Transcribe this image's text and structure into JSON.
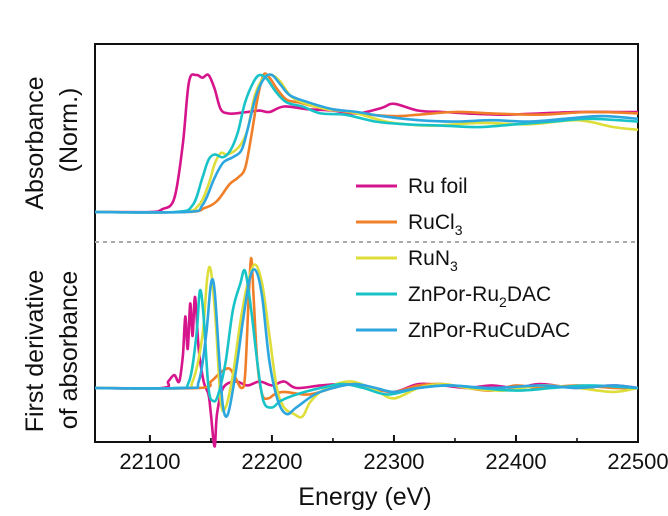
{
  "chart_data": {
    "type": "line",
    "xlabel": "Energy (eV)",
    "ylabel_top": [
      "Absorbance",
      "(Norm.)"
    ],
    "ylabel_bottom": [
      "First derivative",
      "of absorbance"
    ],
    "xlim": [
      22055,
      22500
    ],
    "xticks": [
      "22100",
      "22200",
      "22300",
      "22400",
      "22500"
    ],
    "xtick_values": [
      22100,
      22200,
      22300,
      22400,
      22500
    ],
    "grid": false,
    "legend_position": "center-right",
    "series": [
      {
        "name": "Ru foil",
        "color": "#d6148c",
        "absorbance": [
          [
            22055,
            0.0
          ],
          [
            22100,
            0.0
          ],
          [
            22110,
            0.02
          ],
          [
            22120,
            0.1
          ],
          [
            22127,
            0.5
          ],
          [
            22132,
            0.95
          ],
          [
            22138,
            1.0
          ],
          [
            22143,
            0.98
          ],
          [
            22148,
            1.0
          ],
          [
            22153,
            0.9
          ],
          [
            22158,
            0.75
          ],
          [
            22164,
            0.72
          ],
          [
            22170,
            0.72
          ],
          [
            22180,
            0.73
          ],
          [
            22190,
            0.74
          ],
          [
            22198,
            0.73
          ],
          [
            22210,
            0.77
          ],
          [
            22230,
            0.75
          ],
          [
            22250,
            0.74
          ],
          [
            22270,
            0.72
          ],
          [
            22290,
            0.76
          ],
          [
            22300,
            0.79
          ],
          [
            22320,
            0.74
          ],
          [
            22340,
            0.73
          ],
          [
            22360,
            0.72
          ],
          [
            22390,
            0.71
          ],
          [
            22420,
            0.72
          ],
          [
            22450,
            0.73
          ],
          [
            22480,
            0.73
          ],
          [
            22500,
            0.73
          ]
        ],
        "derivative": [
          [
            22055,
            0.0
          ],
          [
            22110,
            0.0
          ],
          [
            22115,
            0.05
          ],
          [
            22120,
            0.1
          ],
          [
            22124,
            0.05
          ],
          [
            22127,
            0.25
          ],
          [
            22129,
            0.55
          ],
          [
            22131,
            0.3
          ],
          [
            22133,
            0.65
          ],
          [
            22135,
            0.4
          ],
          [
            22137,
            0.7
          ],
          [
            22140,
            0.3
          ],
          [
            22144,
            0.05
          ],
          [
            22148,
            -0.05
          ],
          [
            22150,
            -0.2
          ],
          [
            22153,
            -0.45
          ],
          [
            22155,
            -0.2
          ],
          [
            22160,
            0.0
          ],
          [
            22170,
            0.05
          ],
          [
            22180,
            0.02
          ],
          [
            22190,
            0.05
          ],
          [
            22200,
            0.02
          ],
          [
            22210,
            0.05
          ],
          [
            22220,
            0.0
          ],
          [
            22240,
            0.02
          ],
          [
            22260,
            0.03
          ],
          [
            22280,
            0.0
          ],
          [
            22300,
            -0.03
          ],
          [
            22320,
            0.03
          ],
          [
            22340,
            0.02
          ],
          [
            22360,
            0.0
          ],
          [
            22380,
            0.02
          ],
          [
            22400,
            0.0
          ],
          [
            22420,
            0.03
          ],
          [
            22450,
            0.0
          ],
          [
            22480,
            0.02
          ],
          [
            22500,
            0.0
          ]
        ]
      },
      {
        "name": "RuCl3",
        "color": "#f07f2a",
        "absorbance": [
          [
            22055,
            0.0
          ],
          [
            22130,
            0.0
          ],
          [
            22145,
            0.03
          ],
          [
            22155,
            0.08
          ],
          [
            22165,
            0.2
          ],
          [
            22172,
            0.25
          ],
          [
            22178,
            0.32
          ],
          [
            22183,
            0.55
          ],
          [
            22188,
            0.82
          ],
          [
            22193,
            1.0
          ],
          [
            22198,
            0.98
          ],
          [
            22204,
            0.9
          ],
          [
            22212,
            0.82
          ],
          [
            22222,
            0.8
          ],
          [
            22235,
            0.77
          ],
          [
            22250,
            0.75
          ],
          [
            22270,
            0.72
          ],
          [
            22300,
            0.7
          ],
          [
            22320,
            0.71
          ],
          [
            22350,
            0.73
          ],
          [
            22380,
            0.72
          ],
          [
            22420,
            0.71
          ],
          [
            22460,
            0.73
          ],
          [
            22500,
            0.72
          ]
        ],
        "derivative": [
          [
            22055,
            0.0
          ],
          [
            22140,
            0.0
          ],
          [
            22150,
            0.05
          ],
          [
            22158,
            0.12
          ],
          [
            22165,
            0.15
          ],
          [
            22170,
            0.08
          ],
          [
            22175,
            0.0
          ],
          [
            22178,
            0.1
          ],
          [
            22181,
            0.7
          ],
          [
            22183,
            1.0
          ],
          [
            22185,
            0.7
          ],
          [
            22188,
            0.2
          ],
          [
            22192,
            -0.05
          ],
          [
            22197,
            -0.08
          ],
          [
            22202,
            -0.05
          ],
          [
            22210,
            -0.03
          ],
          [
            22230,
            -0.05
          ],
          [
            22250,
            0.0
          ],
          [
            22265,
            0.03
          ],
          [
            22280,
            0.0
          ],
          [
            22300,
            -0.03
          ],
          [
            22320,
            0.02
          ],
          [
            22340,
            0.03
          ],
          [
            22360,
            0.0
          ],
          [
            22380,
            -0.02
          ],
          [
            22400,
            0.02
          ],
          [
            22420,
            0.0
          ],
          [
            22450,
            0.02
          ],
          [
            22480,
            0.0
          ],
          [
            22500,
            0.0
          ]
        ]
      },
      {
        "name": "RuN3",
        "color": "#dede3a",
        "absorbance": [
          [
            22055,
            0.0
          ],
          [
            22125,
            0.0
          ],
          [
            22140,
            0.05
          ],
          [
            22148,
            0.2
          ],
          [
            22153,
            0.35
          ],
          [
            22158,
            0.43
          ],
          [
            22163,
            0.42
          ],
          [
            22170,
            0.45
          ],
          [
            22175,
            0.5
          ],
          [
            22180,
            0.6
          ],
          [
            22186,
            0.85
          ],
          [
            22193,
            0.98
          ],
          [
            22200,
            1.0
          ],
          [
            22207,
            0.95
          ],
          [
            22215,
            0.85
          ],
          [
            22225,
            0.8
          ],
          [
            22245,
            0.75
          ],
          [
            22265,
            0.73
          ],
          [
            22285,
            0.68
          ],
          [
            22300,
            0.65
          ],
          [
            22330,
            0.63
          ],
          [
            22370,
            0.65
          ],
          [
            22410,
            0.64
          ],
          [
            22450,
            0.67
          ],
          [
            22480,
            0.62
          ],
          [
            22500,
            0.6
          ]
        ],
        "derivative": [
          [
            22055,
            0.0
          ],
          [
            22125,
            0.0
          ],
          [
            22135,
            0.05
          ],
          [
            22143,
            0.4
          ],
          [
            22147,
            0.85
          ],
          [
            22150,
            0.9
          ],
          [
            22154,
            0.5
          ],
          [
            22158,
            -0.1
          ],
          [
            22162,
            -0.15
          ],
          [
            22168,
            0.1
          ],
          [
            22174,
            0.5
          ],
          [
            22180,
            0.8
          ],
          [
            22186,
            0.95
          ],
          [
            22192,
            0.8
          ],
          [
            22198,
            0.4
          ],
          [
            22204,
            0.0
          ],
          [
            22210,
            -0.15
          ],
          [
            22218,
            -0.2
          ],
          [
            22225,
            -0.22
          ],
          [
            22232,
            -0.1
          ],
          [
            22245,
            0.0
          ],
          [
            22265,
            0.05
          ],
          [
            22285,
            -0.02
          ],
          [
            22300,
            -0.08
          ],
          [
            22320,
            0.0
          ],
          [
            22340,
            0.03
          ],
          [
            22360,
            0.0
          ],
          [
            22390,
            -0.02
          ],
          [
            22420,
            0.02
          ],
          [
            22450,
            0.0
          ],
          [
            22480,
            -0.03
          ],
          [
            22500,
            0.0
          ]
        ]
      },
      {
        "name": "ZnPor-Ru2DAC",
        "color": "#18c3c8",
        "absorbance": [
          [
            22055,
            0.0
          ],
          [
            22120,
            0.0
          ],
          [
            22135,
            0.05
          ],
          [
            22143,
            0.25
          ],
          [
            22148,
            0.38
          ],
          [
            22153,
            0.42
          ],
          [
            22160,
            0.4
          ],
          [
            22166,
            0.45
          ],
          [
            22172,
            0.58
          ],
          [
            22178,
            0.8
          ],
          [
            22185,
            0.95
          ],
          [
            22190,
            1.0
          ],
          [
            22196,
            0.97
          ],
          [
            22203,
            0.88
          ],
          [
            22212,
            0.8
          ],
          [
            22225,
            0.77
          ],
          [
            22240,
            0.72
          ],
          [
            22260,
            0.71
          ],
          [
            22285,
            0.66
          ],
          [
            22310,
            0.64
          ],
          [
            22340,
            0.63
          ],
          [
            22370,
            0.62
          ],
          [
            22400,
            0.64
          ],
          [
            22430,
            0.66
          ],
          [
            22460,
            0.68
          ],
          [
            22500,
            0.66
          ]
        ],
        "derivative": [
          [
            22055,
            0.0
          ],
          [
            22120,
            0.0
          ],
          [
            22132,
            0.05
          ],
          [
            22138,
            0.4
          ],
          [
            22141,
            0.75
          ],
          [
            22144,
            0.55
          ],
          [
            22148,
            0.0
          ],
          [
            22152,
            -0.1
          ],
          [
            22156,
            -0.05
          ],
          [
            22162,
            0.2
          ],
          [
            22168,
            0.6
          ],
          [
            22174,
            0.8
          ],
          [
            22178,
            0.9
          ],
          [
            22183,
            0.6
          ],
          [
            22188,
            0.2
          ],
          [
            22193,
            -0.1
          ],
          [
            22200,
            -0.15
          ],
          [
            22207,
            -0.1
          ],
          [
            22220,
            -0.05
          ],
          [
            22240,
            0.0
          ],
          [
            22258,
            0.03
          ],
          [
            22275,
            0.0
          ],
          [
            22295,
            -0.05
          ],
          [
            22320,
            0.0
          ],
          [
            22345,
            0.02
          ],
          [
            22370,
            0.0
          ],
          [
            22400,
            -0.02
          ],
          [
            22430,
            0.0
          ],
          [
            22460,
            0.02
          ],
          [
            22500,
            0.0
          ]
        ]
      },
      {
        "name": "ZnPor-RuCuDAC",
        "color": "#2da6e0",
        "absorbance": [
          [
            22055,
            0.0
          ],
          [
            22130,
            0.0
          ],
          [
            22143,
            0.05
          ],
          [
            22153,
            0.25
          ],
          [
            22160,
            0.36
          ],
          [
            22168,
            0.4
          ],
          [
            22175,
            0.45
          ],
          [
            22180,
            0.6
          ],
          [
            22187,
            0.85
          ],
          [
            22194,
            0.98
          ],
          [
            22200,
            1.0
          ],
          [
            22207,
            0.93
          ],
          [
            22215,
            0.85
          ],
          [
            22230,
            0.8
          ],
          [
            22250,
            0.75
          ],
          [
            22270,
            0.73
          ],
          [
            22290,
            0.7
          ],
          [
            22320,
            0.67
          ],
          [
            22350,
            0.66
          ],
          [
            22380,
            0.67
          ],
          [
            22410,
            0.66
          ],
          [
            22440,
            0.68
          ],
          [
            22470,
            0.7
          ],
          [
            22500,
            0.68
          ]
        ],
        "derivative": [
          [
            22055,
            0.0
          ],
          [
            22130,
            0.0
          ],
          [
            22140,
            0.05
          ],
          [
            22146,
            0.4
          ],
          [
            22150,
            0.8
          ],
          [
            22153,
            0.75
          ],
          [
            22157,
            0.2
          ],
          [
            22160,
            -0.15
          ],
          [
            22164,
            -0.2
          ],
          [
            22170,
            0.1
          ],
          [
            22176,
            0.5
          ],
          [
            22182,
            0.85
          ],
          [
            22187,
            0.9
          ],
          [
            22192,
            0.7
          ],
          [
            22198,
            0.2
          ],
          [
            22205,
            -0.1
          ],
          [
            22212,
            -0.2
          ],
          [
            22220,
            -0.15
          ],
          [
            22235,
            -0.05
          ],
          [
            22250,
            0.0
          ],
          [
            22268,
            0.03
          ],
          [
            22285,
            0.0
          ],
          [
            22300,
            -0.03
          ],
          [
            22320,
            0.0
          ],
          [
            22345,
            0.02
          ],
          [
            22380,
            0.0
          ],
          [
            22420,
            0.02
          ],
          [
            22450,
            0.0
          ],
          [
            22480,
            0.02
          ],
          [
            22500,
            0.0
          ]
        ]
      }
    ],
    "legend_labels": [
      {
        "parts": [
          [
            "Ru foil",
            "n"
          ]
        ]
      },
      {
        "parts": [
          [
            "RuCl",
            "n"
          ],
          [
            "3",
            "sub"
          ]
        ]
      },
      {
        "parts": [
          [
            "RuN",
            "n"
          ],
          [
            "3",
            "sub"
          ]
        ]
      },
      {
        "parts": [
          [
            "ZnPor-Ru",
            "n"
          ],
          [
            "2",
            "sub"
          ],
          [
            "DAC",
            "n"
          ]
        ]
      },
      {
        "parts": [
          [
            "ZnPor-RuCuDAC",
            "n"
          ]
        ]
      }
    ]
  }
}
